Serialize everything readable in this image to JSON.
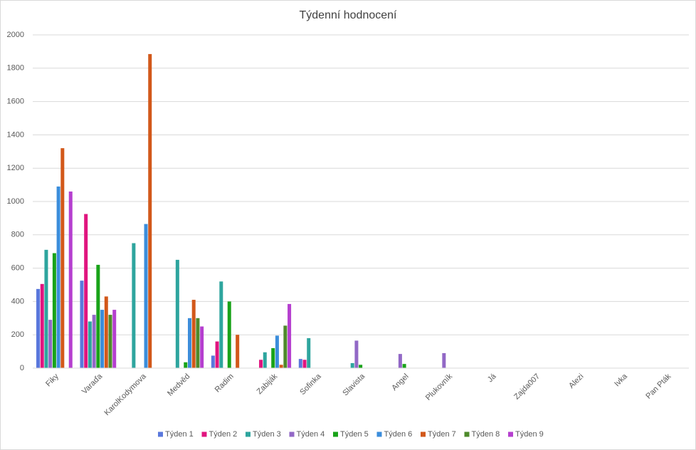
{
  "chart_data": {
    "type": "bar",
    "title": "Týdenní hodnocení",
    "categories": [
      "Fiky",
      "Varaďa",
      "KarolKodymova",
      "Medvěd",
      "Radim",
      "Zabiják",
      "Sofinka",
      "Slavista",
      "Angel",
      "Plukovník",
      "Já",
      "Zajda007",
      "Alezi",
      "Ivka",
      "Pan Pták"
    ],
    "series": [
      {
        "name": "Týden 1",
        "color": "#5a78dc",
        "values": [
          475,
          525,
          null,
          null,
          75,
          null,
          55,
          null,
          null,
          null,
          null,
          null,
          null,
          null,
          null
        ]
      },
      {
        "name": "Týden 2",
        "color": "#e0157f",
        "values": [
          505,
          925,
          null,
          null,
          160,
          50,
          50,
          null,
          null,
          null,
          null,
          null,
          null,
          null,
          null
        ]
      },
      {
        "name": "Týden 3",
        "color": "#2ea59e",
        "values": [
          710,
          280,
          750,
          650,
          520,
          95,
          180,
          30,
          null,
          null,
          null,
          null,
          null,
          null,
          null
        ]
      },
      {
        "name": "Týden 4",
        "color": "#9268c6",
        "values": [
          290,
          320,
          null,
          null,
          null,
          null,
          null,
          165,
          85,
          90,
          null,
          null,
          null,
          null,
          null
        ]
      },
      {
        "name": "Týden 5",
        "color": "#19a319",
        "values": [
          690,
          620,
          null,
          35,
          400,
          120,
          null,
          20,
          25,
          null,
          null,
          null,
          null,
          null,
          null
        ]
      },
      {
        "name": "Týden 6",
        "color": "#3b8ddb",
        "values": [
          1090,
          350,
          865,
          300,
          null,
          195,
          null,
          null,
          null,
          null,
          null,
          null,
          null,
          null,
          null
        ]
      },
      {
        "name": "Týden 7",
        "color": "#d2581a",
        "values": [
          1320,
          430,
          1885,
          410,
          200,
          20,
          null,
          null,
          null,
          null,
          null,
          null,
          null,
          null,
          null
        ]
      },
      {
        "name": "Týden 8",
        "color": "#4e8a2b",
        "values": [
          null,
          320,
          null,
          300,
          null,
          255,
          null,
          null,
          null,
          null,
          null,
          null,
          null,
          null,
          null
        ]
      },
      {
        "name": "Týden 9",
        "color": "#b53fcf",
        "values": [
          1060,
          350,
          null,
          250,
          null,
          385,
          null,
          null,
          null,
          null,
          null,
          null,
          null,
          null,
          null
        ]
      }
    ],
    "ylim": [
      0,
      2000
    ],
    "yticks": [
      0,
      200,
      400,
      600,
      800,
      1000,
      1200,
      1400,
      1600,
      1800,
      2000
    ],
    "grid": true,
    "legend": "bottom"
  }
}
